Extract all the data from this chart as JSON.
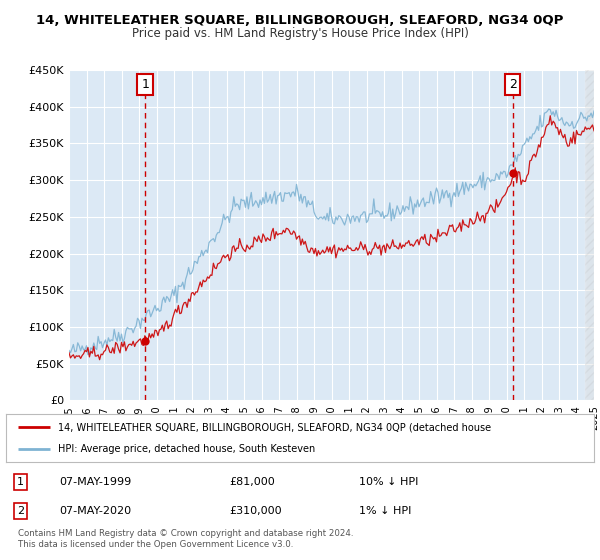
{
  "title": "14, WHITELEATHER SQUARE, BILLINGBOROUGH, SLEAFORD, NG34 0QP",
  "subtitle": "Price paid vs. HM Land Registry's House Price Index (HPI)",
  "legend_line1": "14, WHITELEATHER SQUARE, BILLINGBOROUGH, SLEAFORD, NG34 0QP (detached house",
  "legend_line2": "HPI: Average price, detached house, South Kesteven",
  "annotation1_label": "1",
  "annotation1_date": "07-MAY-1999",
  "annotation1_price": "£81,000",
  "annotation1_hpi": "10% ↓ HPI",
  "annotation2_label": "2",
  "annotation2_date": "07-MAY-2020",
  "annotation2_price": "£310,000",
  "annotation2_hpi": "1% ↓ HPI",
  "copyright": "Contains HM Land Registry data © Crown copyright and database right 2024.\nThis data is licensed under the Open Government Licence v3.0.",
  "red_color": "#cc0000",
  "blue_color": "#7fb3d3",
  "plot_bg": "#dce9f5",
  "vline_color": "#cc0000",
  "dot1_x": 1999.35,
  "dot1_y": 81000,
  "dot2_x": 2020.35,
  "dot2_y": 310000,
  "xmin": 1995,
  "xmax": 2025,
  "ymin": 0,
  "ymax": 450000,
  "yticks": [
    0,
    50000,
    100000,
    150000,
    200000,
    250000,
    300000,
    350000,
    400000,
    450000
  ],
  "hatch_start": 2024.5
}
